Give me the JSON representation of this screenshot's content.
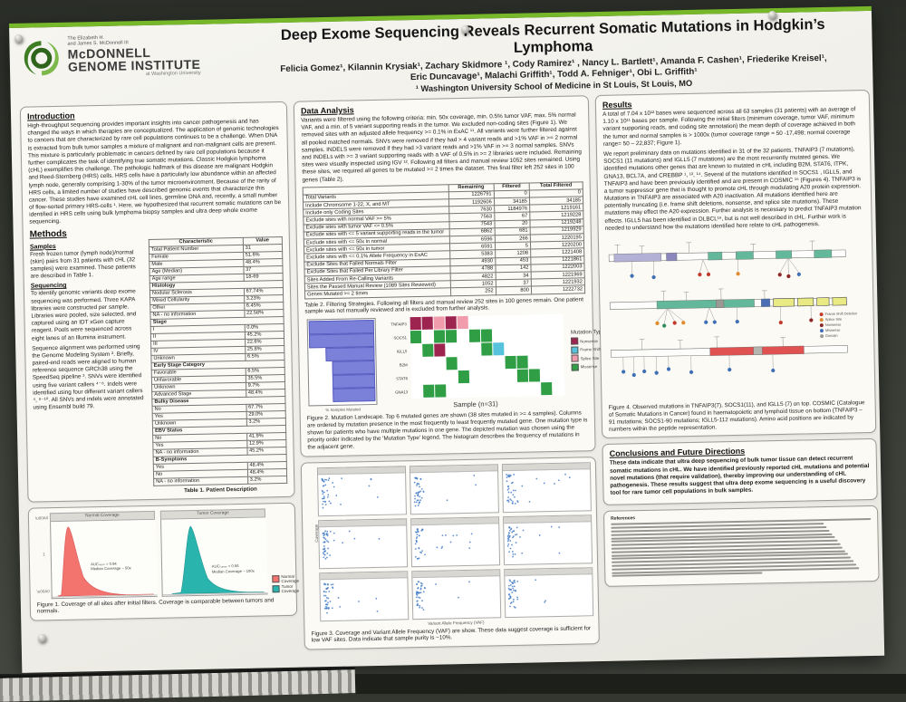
{
  "logo": {
    "pre1": "The Elizabeth H.",
    "pre2": "and James S. McDonnell III",
    "name1": "McDONNELL",
    "name2": "GENOME INSTITUTE",
    "sub": "at Washington University",
    "accent_color": "#4f9e2f"
  },
  "header": {
    "title": "Deep Exome Sequencing Reveals Recurrent Somatic Mutations in Hodgkin’s Lymphoma",
    "authors_line1": "Felicia Gomez¹, Kilannin Krysiak¹, Zachary Skidmore ¹, Cody Ramirez¹ , Nancy L. Bartlett¹, Amanda F. Cashen¹, Friederike Kreisel¹,",
    "authors_line2": "Eric Duncavage¹, Malachi Griffith¹, Todd A. Fehniger¹, Obi L.  Griffith¹",
    "affiliation": "¹ Washington University School of Medicine in St Louis, St Louis, MO"
  },
  "introduction": {
    "heading": "Introduction",
    "text": "High-throughput sequencing provides important insights into cancer pathogenesis and has changed the ways in which therapies are conceptualized. The application of genomic technologies to cancers that are characterized by rare cell populations continues to be a challenge.  When DNA is extracted from bulk tumor samples a mixture of malignant and non-malignant cells are present. This mixture is particularly problematic in cancers defined by rare cell populations because it further complicates the task of identifying true somatic mutations.  Classic Hodgkin lymphoma (cHL) exemplifies this challenge.  The pathologic hallmark of this disease are malignant Hodgkin and Reed-Sternberg (HRS) cells.  HRS cells have a particularly low abundance within an affected lymph node, generally comprising 1-30% of the tumor microenvironment.  Because of the rarity of HRS cells, a limited number of studies have described genomic events that characterize this cancer.  These studies have examined cHL cell lines, germline DNA and, recently, a small number of flow-sorted primary HRS-cells ¹. Here, we hypothesized that recurrent somatic mutations can be identified in HRS cells using bulk lymphoma biopsy samples and ultra deep whole exome sequencing."
  },
  "methods": {
    "heading": "Methods",
    "samples_heading": "Samples",
    "samples_text": "Fresh frozen tumor (lymph node)/normal (skin) pairs from 31 patients with cHL (32 samples) were examined. These patients are described in Table 1.",
    "sequencing_heading": "Sequencing",
    "sequencing_text1": "To identify genomic variants deep exome sequencing was performed. Three KAPA libraries were constructed per sample. Libraries were pooled, size selected, and captured using an IDT xGen capture reagent. Pools were sequenced across eight lanes of an Illumina instrument.",
    "sequencing_text2": "Sequence alignment was performed using the Genome Modeling System ².  Briefly, paired-end reads were aligned to human reference sequence GRCh38 using the SpeedSeq pipeline ³.  SNVs were identified using five variant callers ⁴⁻⁸.  Indels were identified using four different variant callers ⁴, ⁸⁻¹⁰.  All SNVs and indels were annotated using Ensembl build 79."
  },
  "table1": {
    "headers": [
      "Characteristic",
      "Value"
    ],
    "rows": [
      {
        "label": "Total Patient Number",
        "value": "31",
        "section": false
      },
      {
        "label": "Female",
        "value": "51.6%",
        "section": false
      },
      {
        "label": "Male",
        "value": "48.4%",
        "section": false
      },
      {
        "label": "Age (Median)",
        "value": "37",
        "section": false
      },
      {
        "label": "Age range",
        "value": "18-69",
        "section": false
      },
      {
        "label": "Histology",
        "value": "",
        "section": true
      },
      {
        "label": "Nodular Sclerosis",
        "value": "67.74%",
        "section": false
      },
      {
        "label": "Mixed Cellularity",
        "value": "3.23%",
        "section": false
      },
      {
        "label": "Other",
        "value": "6.45%",
        "section": false
      },
      {
        "label": "NA - no information",
        "value": "22.58%",
        "section": false
      },
      {
        "label": "Stage",
        "value": "",
        "section": true
      },
      {
        "label": "I",
        "value": "0.0%",
        "section": false
      },
      {
        "label": "II",
        "value": "45.2%",
        "section": false
      },
      {
        "label": "III",
        "value": "22.6%",
        "section": false
      },
      {
        "label": "IV",
        "value": "25.8%",
        "section": false
      },
      {
        "label": "Unknown",
        "value": "6.5%",
        "section": false
      },
      {
        "label": "Early Stage Category",
        "value": "",
        "section": true
      },
      {
        "label": "Favorable",
        "value": "6.5%",
        "section": false
      },
      {
        "label": "Unfavorable",
        "value": "35.5%",
        "section": false
      },
      {
        "label": "Unknown",
        "value": "9.7%",
        "section": false
      },
      {
        "label": "Advanced Stage",
        "value": "48.4%",
        "section": false
      },
      {
        "label": "Bulky Disease",
        "value": "",
        "section": true
      },
      {
        "label": "No",
        "value": "67.7%",
        "section": false
      },
      {
        "label": "Yes",
        "value": "29.0%",
        "section": false
      },
      {
        "label": "Unknown",
        "value": "3.2%",
        "section": false
      },
      {
        "label": "EBV Status",
        "value": "",
        "section": true
      },
      {
        "label": "No",
        "value": "41.9%",
        "section": false
      },
      {
        "label": "Yes",
        "value": "12.9%",
        "section": false
      },
      {
        "label": "NA - no information",
        "value": "45.2%",
        "section": false
      },
      {
        "label": "B-Symptoms",
        "value": "",
        "section": true
      },
      {
        "label": "Yes",
        "value": "48.4%",
        "section": false
      },
      {
        "label": "No",
        "value": "48.4%",
        "section": false
      },
      {
        "label": "NA - no information",
        "value": "3.2%",
        "section": false
      }
    ],
    "caption": "Table 1. Patient Description"
  },
  "figure1": {
    "panels": [
      {
        "title": "Normal Coverage",
        "color": "#f3736f",
        "note1": "AUCₙₒᵣₘ = 0.94",
        "note2": "Median Coverage ~ 50x"
      },
      {
        "title": "Tumor Coverage",
        "color": "#29b4ae",
        "note1": "AUCₜᵤₘₒᵣ = 0.56",
        "note2": "Median Coverage ~ 100x"
      }
    ],
    "legend": [
      {
        "label": "Normal Coverage",
        "color": "#f3736f"
      },
      {
        "label": "Tumor Coverage",
        "color": "#29b4ae"
      }
    ],
    "y_tick": "1",
    "caption": "Figure 1. Coverage of all sites after initial filters. Coverage is comparable between tumors and normals."
  },
  "data_analysis": {
    "heading": "Data Analysis",
    "text": "Variants were filtered using the following criteria: min. 50x coverage, min. 0.5% tumor VAF, max. 5% normal VAF, and a min. of 5 variant supporting reads in the tumor.  We excluded non-coding sites (Figure 1).  We removed sites with an adjusted allele frequency >= 0.1% in ExAC ¹¹.  All variants were further filtered against all pooled matched normals.  SNVs were removed if they had > 4 variant reads and >1% VAF in >= 2 normal samples.  INDELS were removed if they had >3 variant reads and >1% VAF in >= 3 normal samples.  SNVs and INDELs with >= 3 variant supporting reads with a VAF of 0.5% in >= 2 libraries were included.  Remaining sites were visually inspected using IGV ¹².  Following all filters and manual review 1052 sites remained. Using these sites, we required all genes to be mutated >= 2 times the dataset. This final filter left 252 sites in 100 genes (Table 2)."
  },
  "table2": {
    "headers": [
      "",
      "Remaining",
      "Filtered",
      "Total Filtered"
    ],
    "rows": [
      [
        "Total Variants",
        "1226791",
        "0",
        "0"
      ],
      [
        "Include Chromsome 1-22, X, and MT",
        "1192606",
        "34185",
        "34185"
      ],
      [
        "Include only Coding Sites",
        "7630",
        "1184976",
        "1219161"
      ],
      [
        "Exclude sites with normal VAF >= 5%",
        "7563",
        "67",
        "1219228"
      ],
      [
        "Exclude sites with tumor VAF <= 0.5%",
        "7543",
        "20",
        "1219248"
      ],
      [
        "Exclude sites with <= 5 variant supporting reads in the tumor",
        "6862",
        "681",
        "1219929"
      ],
      [
        "Exclude sites with <= 50x in normal",
        "6596",
        "266",
        "1220195"
      ],
      [
        "Exclude sites with <= 50x in tumor",
        "6591",
        "5",
        "1220200"
      ],
      [
        "Exclude sites with <= 0.1% Allele Frequency in ExAC",
        "5383",
        "1208",
        "1221408"
      ],
      [
        "Exclude Sites that Failed Normals Filter",
        "4930",
        "453",
        "1221861"
      ],
      [
        "Exclude Sites that Failed Per Library Filter",
        "4788",
        "142",
        "1222003"
      ],
      [
        "Sites Added From Re-Calling Variants",
        "4822",
        "34",
        "1221969"
      ],
      [
        "Sites the Passed Manual Review (1089 Sites Reviewed)",
        "1052",
        "37",
        "1221932"
      ],
      [
        "Genes Mutated >= 2 times",
        "252",
        "800",
        "1222732"
      ]
    ],
    "caption": "Table 2. Filtering Strategies.  Following all filters and manual review 252 sites in 100 genes remain.  One patient sample was not manually reviewed and is excluded from further analysis."
  },
  "figure2": {
    "genes": [
      "TNFAIP3",
      "SOCS1",
      "IGLL5",
      "B2M",
      "STAT6",
      "GNA13"
    ],
    "hist_values": [
      100,
      100,
      75,
      65,
      65,
      65
    ],
    "hist_axis_label": "% Samples Mutated",
    "x_label": "Sample (n=31)",
    "legend_title": "Mutation Type",
    "legend": [
      {
        "label": "Nonsense",
        "color": "#9e2450",
        "code": "N"
      },
      {
        "label": "Frame Shift Deletion",
        "color": "#56c2dc",
        "code": "F"
      },
      {
        "label": "Splice Site",
        "color": "#f19cac",
        "code": "S"
      },
      {
        "label": "Missense",
        "color": "#2f9e44",
        "code": "M"
      }
    ],
    "cells": [
      {
        "r": 0,
        "c": 0,
        "t": "N"
      },
      {
        "r": 0,
        "c": 1,
        "t": "N"
      },
      {
        "r": 0,
        "c": 2,
        "t": "S"
      },
      {
        "r": 0,
        "c": 3,
        "t": "N"
      },
      {
        "r": 0,
        "c": 4,
        "t": "S"
      },
      {
        "r": 1,
        "c": 0,
        "t": "M"
      },
      {
        "r": 1,
        "c": 2,
        "t": "M"
      },
      {
        "r": 1,
        "c": 3,
        "t": "M"
      },
      {
        "r": 1,
        "c": 5,
        "t": "M"
      },
      {
        "r": 1,
        "c": 6,
        "t": "M"
      },
      {
        "r": 2,
        "c": 1,
        "t": "M"
      },
      {
        "r": 2,
        "c": 2,
        "t": "N"
      },
      {
        "r": 2,
        "c": 6,
        "t": "M"
      },
      {
        "r": 2,
        "c": 7,
        "t": "F"
      },
      {
        "r": 3,
        "c": 3,
        "t": "M"
      },
      {
        "r": 3,
        "c": 8,
        "t": "M"
      },
      {
        "r": 3,
        "c": 9,
        "t": "M"
      },
      {
        "r": 4,
        "c": 4,
        "t": "M"
      },
      {
        "r": 4,
        "c": 9,
        "t": "M"
      },
      {
        "r": 4,
        "c": 10,
        "t": "M"
      },
      {
        "r": 5,
        "c": 1,
        "t": "M"
      },
      {
        "r": 5,
        "c": 2,
        "t": "M"
      },
      {
        "r": 5,
        "c": 11,
        "t": "M"
      }
    ],
    "caption": "Figure 2. Mutation Landscape.  Top 6 mutated genes are shown (38 sites mutated in >= 4 samples).  Columns are ordered by mutation presence in the most frequently to least frequently mutated gene.  One mutation type is shown for patients who have multiple mutations in one gene.  The depicted mutation was chosen using the priority order indicated by the 'Mutation Type' legend.  The histogram describes the frequency of mutations in the adjacent gene."
  },
  "figure3": {
    "y_label": "Coverage",
    "x_label": "Variant Allele Frequency (VAF)",
    "panel_count": 9,
    "point_color": "#3b76c4",
    "caption": "Figure 3. Coverage and Variant Allele Frequency (VAF) are show. These data suggest coverage is sufficient for low VAF sites.  Data indicate that sample purity is ~10%."
  },
  "results": {
    "heading": "Results",
    "p1": "A total of 7.04 x 10¹² bases were sequenced across all 63 samples (31 patients) with an average of 1.10 x 10¹¹ bases per sample.  Following the initial filters  (minimum coverage, tumor VAF, minimum variant supporting reads, and coding site annotation) the mean depth of coverage achieved in both the tumor and normal samples is > 1000x (tumor coverage range = 50 -17,498; normal coverage range= 50 – 22,837; Figure 1).",
    "p2": "We report preliminary data on mutations identified in 31 of the 32 patients. TNFAIP3 (7 mutations), SOCS1 (11 mutations) and IGLL5 (7 mutations) are the most recurrently mutated genes.  We identified mutations other genes that are known to mutated in cHL including B2M, STAT6, ITPK, GNA13, BCL7A, and CREBBP ¹, ¹³, ¹⁴.  Several of the mutations identified in SOCS1 , IGLL5, and TNFAIP3 and have been previously identified and are present in COSMIC ¹⁵ (Figures 4). TNFAIP3 is a tumor suppressor gene that is thought to promote cHL through modulating A20 protein expression. Mutations in TNFAIP3 are associated with A20 inactivation. All mutations identified here are potentially truncating (i.e. frame shift deletions, nonsense, and splice site mutations). These mutations may effect the A20 expression. Further analysis is necessary to predict TNFAIP3 mutation effects.  IGLL5 has been identified in DLBCL¹⁶, but is not well described in cHL.  Further work is needed to understand how the mutations identified here relate to cHL pathogenesis."
  },
  "figure4": {
    "legend": [
      {
        "label": "Frame Shift Deletion",
        "color": "#c0392b"
      },
      {
        "label": "Splice Site",
        "color": "#e08a2e"
      },
      {
        "label": "Nonsense",
        "color": "#8e2727"
      },
      {
        "label": "Missense",
        "color": "#3f6fb5"
      },
      {
        "label": "Domain",
        "color": "#9a9a94"
      }
    ],
    "caption": "Figure 4. Observed mutations in TNFAIP3(7), SOCS1(11), and IGLL5 (7) on top. COSMIC (Catalogue of Somatic Mutations in Cancer) found in haematopoietic and lymphoid tissue on bottom (TNFAIP3 – 91 mutations; SOCS1-90 mutations; IGLL5-112 mutations). Amino acid positions are indicated by numbers within the peptide representation."
  },
  "conclusions": {
    "heading": "Conclusions and Future Directions",
    "text": "These data indicate that ultra deep sequencing of bulk tumor tissue can detect recurrent somatic mutations in cHL.  We have identified previously reported cHL mutations and potential novel mutations (that require validation), thereby improving our understanding of cHL pathogenesis.  These results suggest that ultra deep exome sequencing is a useful discovery tool for rare tumor cell populations in bulk samples.",
    "references_heading": "References"
  }
}
